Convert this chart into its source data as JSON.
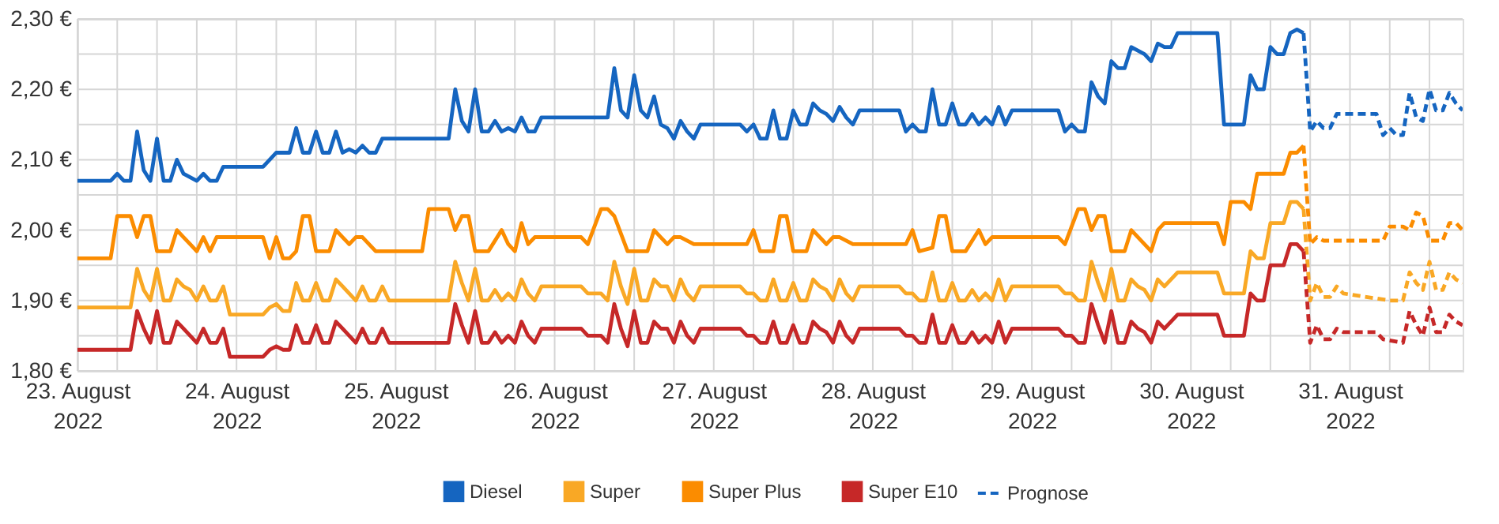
{
  "chart_data": {
    "type": "line",
    "xlim": [
      "2022-08-23T00:00",
      "2022-08-31T17:00"
    ],
    "ylim": [
      1.8,
      2.3
    ],
    "xticks": [
      {
        "value": "2022-08-23T00:00",
        "label": "23. August 2022"
      },
      {
        "value": "2022-08-23T06:00",
        "label": null
      },
      {
        "value": "2022-08-23T12:00",
        "label": null
      },
      {
        "value": "2022-08-23T18:00",
        "label": null
      },
      {
        "value": "2022-08-24T00:00",
        "label": "24. August 2022"
      },
      {
        "value": "2022-08-24T06:00",
        "label": null
      },
      {
        "value": "2022-08-24T12:00",
        "label": null
      },
      {
        "value": "2022-08-24T18:00",
        "label": null
      },
      {
        "value": "2022-08-25T00:00",
        "label": "25. August 2022"
      },
      {
        "value": "2022-08-25T06:00",
        "label": null
      },
      {
        "value": "2022-08-25T12:00",
        "label": null
      },
      {
        "value": "2022-08-25T18:00",
        "label": null
      },
      {
        "value": "2022-08-26T00:00",
        "label": "26. August 2022"
      },
      {
        "value": "2022-08-26T06:00",
        "label": null
      },
      {
        "value": "2022-08-26T12:00",
        "label": null
      },
      {
        "value": "2022-08-26T18:00",
        "label": null
      },
      {
        "value": "2022-08-27T00:00",
        "label": "27. August 2022"
      },
      {
        "value": "2022-08-27T06:00",
        "label": null
      },
      {
        "value": "2022-08-27T12:00",
        "label": null
      },
      {
        "value": "2022-08-27T18:00",
        "label": null
      },
      {
        "value": "2022-08-28T00:00",
        "label": "28. August 2022"
      },
      {
        "value": "2022-08-28T06:00",
        "label": null
      },
      {
        "value": "2022-08-28T12:00",
        "label": null
      },
      {
        "value": "2022-08-28T18:00",
        "label": null
      },
      {
        "value": "2022-08-29T00:00",
        "label": "29. August 2022"
      },
      {
        "value": "2022-08-29T06:00",
        "label": null
      },
      {
        "value": "2022-08-29T12:00",
        "label": null
      },
      {
        "value": "2022-08-29T18:00",
        "label": null
      },
      {
        "value": "2022-08-30T00:00",
        "label": "30. August 2022"
      },
      {
        "value": "2022-08-30T06:00",
        "label": null
      },
      {
        "value": "2022-08-30T12:00",
        "label": null
      },
      {
        "value": "2022-08-30T18:00",
        "label": null
      },
      {
        "value": "2022-08-31T00:00",
        "label": "31. August 2022"
      },
      {
        "value": "2022-08-31T06:00",
        "label": null
      },
      {
        "value": "2022-08-31T12:00",
        "label": null
      }
    ],
    "yticks": [
      {
        "value": 1.8,
        "label": "1,80 €"
      },
      {
        "value": 1.85,
        "label": null
      },
      {
        "value": 1.9,
        "label": "1,90 €"
      },
      {
        "value": 1.95,
        "label": null
      },
      {
        "value": 2.0,
        "label": "2,00 €"
      },
      {
        "value": 2.05,
        "label": null
      },
      {
        "value": 2.1,
        "label": "2,10 €"
      },
      {
        "value": 2.15,
        "label": null
      },
      {
        "value": 2.2,
        "label": "2,20 €"
      },
      {
        "value": 2.25,
        "label": null
      },
      {
        "value": 2.3,
        "label": "2,30 €"
      }
    ],
    "grid": true,
    "legend": "bottom",
    "marker": "none",
    "series": [
      {
        "name": "Diesel",
        "color": "#1565c0",
        "line_style": "solid",
        "x": [
          "2022-08-23T00:00",
          "2022-08-23T05:00",
          "2022-08-23T06:00",
          "2022-08-23T07:00",
          "2022-08-23T08:00",
          "2022-08-23T09:00",
          "2022-08-23T10:00",
          "2022-08-23T11:00",
          "2022-08-23T12:00",
          "2022-08-23T13:00",
          "2022-08-23T14:00",
          "2022-08-23T15:00",
          "2022-08-23T16:00",
          "2022-08-23T18:00",
          "2022-08-23T19:00",
          "2022-08-23T20:00",
          "2022-08-23T21:00",
          "2022-08-23T22:00",
          "2022-08-24T04:00",
          "2022-08-24T06:00",
          "2022-08-24T08:00",
          "2022-08-24T09:00",
          "2022-08-24T10:00",
          "2022-08-24T11:00",
          "2022-08-24T12:00",
          "2022-08-24T13:00",
          "2022-08-24T14:00",
          "2022-08-24T15:00",
          "2022-08-24T16:00",
          "2022-08-24T17:00",
          "2022-08-24T18:00",
          "2022-08-24T19:00",
          "2022-08-24T20:00",
          "2022-08-24T21:00",
          "2022-08-24T22:00",
          "2022-08-25T08:00",
          "2022-08-25T09:00",
          "2022-08-25T10:00",
          "2022-08-25T11:00",
          "2022-08-25T12:00",
          "2022-08-25T13:00",
          "2022-08-25T14:00",
          "2022-08-25T15:00",
          "2022-08-25T16:00",
          "2022-08-25T17:00",
          "2022-08-25T18:00",
          "2022-08-25T19:00",
          "2022-08-25T20:00",
          "2022-08-25T21:00",
          "2022-08-25T22:00",
          "2022-08-26T08:00",
          "2022-08-26T09:00",
          "2022-08-26T10:00",
          "2022-08-26T11:00",
          "2022-08-26T12:00",
          "2022-08-26T13:00",
          "2022-08-26T14:00",
          "2022-08-26T15:00",
          "2022-08-26T16:00",
          "2022-08-26T17:00",
          "2022-08-26T18:00",
          "2022-08-26T19:00",
          "2022-08-26T20:00",
          "2022-08-26T21:00",
          "2022-08-26T22:00",
          "2022-08-27T04:00",
          "2022-08-27T05:00",
          "2022-08-27T06:00",
          "2022-08-27T07:00",
          "2022-08-27T08:00",
          "2022-08-27T09:00",
          "2022-08-27T10:00",
          "2022-08-27T11:00",
          "2022-08-27T12:00",
          "2022-08-27T13:00",
          "2022-08-27T14:00",
          "2022-08-27T15:00",
          "2022-08-27T16:00",
          "2022-08-27T17:00",
          "2022-08-27T18:00",
          "2022-08-27T19:00",
          "2022-08-27T20:00",
          "2022-08-27T21:00",
          "2022-08-27T22:00",
          "2022-08-28T04:00",
          "2022-08-28T05:00",
          "2022-08-28T06:00",
          "2022-08-28T07:00",
          "2022-08-28T08:00",
          "2022-08-28T09:00",
          "2022-08-28T10:00",
          "2022-08-28T11:00",
          "2022-08-28T12:00",
          "2022-08-28T13:00",
          "2022-08-28T14:00",
          "2022-08-28T15:00",
          "2022-08-28T16:00",
          "2022-08-28T17:00",
          "2022-08-28T18:00",
          "2022-08-28T19:00",
          "2022-08-28T20:00",
          "2022-08-28T21:00",
          "2022-08-29T04:00",
          "2022-08-29T05:00",
          "2022-08-29T06:00",
          "2022-08-29T07:00",
          "2022-08-29T08:00",
          "2022-08-29T09:00",
          "2022-08-29T10:00",
          "2022-08-29T11:00",
          "2022-08-29T12:00",
          "2022-08-29T13:00",
          "2022-08-29T14:00",
          "2022-08-29T15:00",
          "2022-08-29T16:00",
          "2022-08-29T17:00",
          "2022-08-29T18:00",
          "2022-08-29T19:00",
          "2022-08-29T20:00",
          "2022-08-29T21:00",
          "2022-08-29T22:00",
          "2022-08-30T04:00",
          "2022-08-30T05:00",
          "2022-08-30T08:00",
          "2022-08-30T09:00",
          "2022-08-30T10:00",
          "2022-08-30T11:00",
          "2022-08-30T12:00",
          "2022-08-30T13:00",
          "2022-08-30T14:00",
          "2022-08-30T15:00",
          "2022-08-30T16:00",
          "2022-08-30T17:00"
        ],
        "values": [
          2.07,
          2.07,
          2.08,
          2.07,
          2.07,
          2.14,
          2.085,
          2.07,
          2.13,
          2.07,
          2.07,
          2.1,
          2.08,
          2.07,
          2.08,
          2.07,
          2.07,
          2.09,
          2.09,
          2.11,
          2.11,
          2.145,
          2.11,
          2.11,
          2.14,
          2.11,
          2.11,
          2.14,
          2.11,
          2.115,
          2.11,
          2.12,
          2.11,
          2.11,
          2.13,
          2.13,
          2.2,
          2.155,
          2.14,
          2.2,
          2.14,
          2.14,
          2.155,
          2.14,
          2.145,
          2.14,
          2.16,
          2.14,
          2.14,
          2.16,
          2.16,
          2.23,
          2.17,
          2.16,
          2.22,
          2.17,
          2.16,
          2.19,
          2.15,
          2.145,
          2.13,
          2.155,
          2.14,
          2.13,
          2.15,
          2.15,
          2.14,
          2.15,
          2.13,
          2.13,
          2.17,
          2.13,
          2.13,
          2.17,
          2.15,
          2.15,
          2.18,
          2.17,
          2.165,
          2.155,
          2.175,
          2.16,
          2.15,
          2.17,
          2.17,
          2.14,
          2.15,
          2.14,
          2.14,
          2.2,
          2.15,
          2.15,
          2.18,
          2.15,
          2.15,
          2.165,
          2.15,
          2.16,
          2.15,
          2.175,
          2.15,
          2.17,
          2.17,
          2.14,
          2.15,
          2.14,
          2.14,
          2.21,
          2.19,
          2.18,
          2.24,
          2.23,
          2.23,
          2.26,
          2.255,
          2.25,
          2.24,
          2.265,
          2.26,
          2.26,
          2.28,
          2.28,
          2.15,
          2.15,
          2.22,
          2.2,
          2.2,
          2.26,
          2.25,
          2.25,
          2.28,
          2.285,
          2.28
        ]
      },
      {
        "name": "Super",
        "color": "#f9a825",
        "line_style": "solid",
        "x": [
          "2022-08-23T00:00",
          "2022-08-23T08:00",
          "2022-08-23T09:00",
          "2022-08-23T10:00",
          "2022-08-23T11:00",
          "2022-08-23T12:00",
          "2022-08-23T13:00",
          "2022-08-23T14:00",
          "2022-08-23T15:00",
          "2022-08-23T16:00",
          "2022-08-23T17:00",
          "2022-08-23T18:00",
          "2022-08-23T19:00",
          "2022-08-23T20:00",
          "2022-08-23T21:00",
          "2022-08-23T22:00",
          "2022-08-23T23:00",
          "2022-08-24T04:00",
          "2022-08-24T05:00",
          "2022-08-24T06:00",
          "2022-08-24T07:00",
          "2022-08-24T08:00",
          "2022-08-24T09:00",
          "2022-08-24T10:00",
          "2022-08-24T11:00",
          "2022-08-24T12:00",
          "2022-08-24T13:00",
          "2022-08-24T14:00",
          "2022-08-24T15:00",
          "2022-08-24T16:00",
          "2022-08-24T17:00",
          "2022-08-24T18:00",
          "2022-08-24T19:00",
          "2022-08-24T20:00",
          "2022-08-24T21:00",
          "2022-08-24T22:00",
          "2022-08-24T23:00",
          "2022-08-25T08:00",
          "2022-08-25T09:00",
          "2022-08-25T10:00",
          "2022-08-25T11:00",
          "2022-08-25T12:00",
          "2022-08-25T13:00",
          "2022-08-25T14:00",
          "2022-08-25T15:00",
          "2022-08-25T16:00",
          "2022-08-25T17:00",
          "2022-08-25T18:00",
          "2022-08-25T19:00",
          "2022-08-25T20:00",
          "2022-08-25T21:00",
          "2022-08-25T22:00",
          "2022-08-26T04:00",
          "2022-08-26T05:00",
          "2022-08-26T07:00",
          "2022-08-26T08:00",
          "2022-08-26T09:00",
          "2022-08-26T10:00",
          "2022-08-26T11:00",
          "2022-08-26T12:00",
          "2022-08-26T13:00",
          "2022-08-26T14:00",
          "2022-08-26T15:00",
          "2022-08-26T16:00",
          "2022-08-26T17:00",
          "2022-08-26T18:00",
          "2022-08-26T19:00",
          "2022-08-26T20:00",
          "2022-08-26T21:00",
          "2022-08-26T22:00",
          "2022-08-27T04:00",
          "2022-08-27T05:00",
          "2022-08-27T06:00",
          "2022-08-27T07:00",
          "2022-08-27T08:00",
          "2022-08-27T09:00",
          "2022-08-27T10:00",
          "2022-08-27T11:00",
          "2022-08-27T12:00",
          "2022-08-27T13:00",
          "2022-08-27T14:00",
          "2022-08-27T15:00",
          "2022-08-27T16:00",
          "2022-08-27T17:00",
          "2022-08-27T18:00",
          "2022-08-27T19:00",
          "2022-08-27T20:00",
          "2022-08-27T21:00",
          "2022-08-27T22:00",
          "2022-08-28T04:00",
          "2022-08-28T05:00",
          "2022-08-28T06:00",
          "2022-08-28T07:00",
          "2022-08-28T08:00",
          "2022-08-28T09:00",
          "2022-08-28T10:00",
          "2022-08-28T11:00",
          "2022-08-28T12:00",
          "2022-08-28T13:00",
          "2022-08-28T14:00",
          "2022-08-28T15:00",
          "2022-08-28T16:00",
          "2022-08-28T17:00",
          "2022-08-28T18:00",
          "2022-08-28T19:00",
          "2022-08-28T20:00",
          "2022-08-28T21:00",
          "2022-08-29T04:00",
          "2022-08-29T05:00",
          "2022-08-29T06:00",
          "2022-08-29T07:00",
          "2022-08-29T08:00",
          "2022-08-29T09:00",
          "2022-08-29T10:00",
          "2022-08-29T11:00",
          "2022-08-29T12:00",
          "2022-08-29T13:00",
          "2022-08-29T14:00",
          "2022-08-29T15:00",
          "2022-08-29T16:00",
          "2022-08-29T17:00",
          "2022-08-29T18:00",
          "2022-08-29T19:00",
          "2022-08-29T20:00",
          "2022-08-29T22:00",
          "2022-08-30T04:00",
          "2022-08-30T05:00",
          "2022-08-30T08:00",
          "2022-08-30T09:00",
          "2022-08-30T10:00",
          "2022-08-30T11:00",
          "2022-08-30T12:00",
          "2022-08-30T14:00",
          "2022-08-30T15:00",
          "2022-08-30T16:00",
          "2022-08-30T17:00"
        ],
        "values": [
          1.89,
          1.89,
          1.945,
          1.915,
          1.9,
          1.945,
          1.9,
          1.9,
          1.93,
          1.92,
          1.915,
          1.9,
          1.92,
          1.9,
          1.9,
          1.92,
          1.88,
          1.88,
          1.89,
          1.895,
          1.885,
          1.885,
          1.925,
          1.9,
          1.9,
          1.925,
          1.9,
          1.9,
          1.93,
          1.92,
          1.91,
          1.9,
          1.92,
          1.9,
          1.9,
          1.92,
          1.9,
          1.9,
          1.955,
          1.925,
          1.9,
          1.945,
          1.9,
          1.9,
          1.915,
          1.9,
          1.91,
          1.9,
          1.93,
          1.91,
          1.9,
          1.92,
          1.92,
          1.91,
          1.91,
          1.9,
          1.955,
          1.92,
          1.895,
          1.945,
          1.9,
          1.9,
          1.93,
          1.92,
          1.92,
          1.9,
          1.93,
          1.91,
          1.9,
          1.92,
          1.92,
          1.91,
          1.91,
          1.9,
          1.9,
          1.93,
          1.9,
          1.9,
          1.925,
          1.9,
          1.9,
          1.93,
          1.92,
          1.915,
          1.9,
          1.93,
          1.91,
          1.9,
          1.92,
          1.92,
          1.91,
          1.91,
          1.9,
          1.9,
          1.94,
          1.9,
          1.9,
          1.925,
          1.9,
          1.9,
          1.915,
          1.9,
          1.91,
          1.9,
          1.93,
          1.9,
          1.92,
          1.92,
          1.91,
          1.91,
          1.9,
          1.9,
          1.955,
          1.925,
          1.9,
          1.945,
          1.9,
          1.9,
          1.93,
          1.92,
          1.915,
          1.9,
          1.93,
          1.92,
          1.94,
          1.94,
          1.91,
          1.91,
          1.97,
          1.96,
          1.96,
          2.01,
          2.01,
          2.04,
          2.04,
          2.03
        ]
      },
      {
        "name": "Super Plus",
        "color": "#fb8c00",
        "line_style": "solid",
        "x": [
          "2022-08-23T00:00",
          "2022-08-23T05:00",
          "2022-08-23T06:00",
          "2022-08-23T08:00",
          "2022-08-23T09:00",
          "2022-08-23T10:00",
          "2022-08-23T11:00",
          "2022-08-23T12:00",
          "2022-08-23T14:00",
          "2022-08-23T15:00",
          "2022-08-23T16:00",
          "2022-08-23T17:00",
          "2022-08-23T18:00",
          "2022-08-23T19:00",
          "2022-08-23T20:00",
          "2022-08-23T21:00",
          "2022-08-24T04:00",
          "2022-08-24T05:00",
          "2022-08-24T06:00",
          "2022-08-24T07:00",
          "2022-08-24T08:00",
          "2022-08-24T09:00",
          "2022-08-24T10:00",
          "2022-08-24T11:00",
          "2022-08-24T12:00",
          "2022-08-24T14:00",
          "2022-08-24T15:00",
          "2022-08-24T16:00",
          "2022-08-24T17:00",
          "2022-08-24T18:00",
          "2022-08-24T19:00",
          "2022-08-24T21:00",
          "2022-08-25T04:00",
          "2022-08-25T05:00",
          "2022-08-25T08:00",
          "2022-08-25T09:00",
          "2022-08-25T10:00",
          "2022-08-25T11:00",
          "2022-08-25T12:00",
          "2022-08-25T14:00",
          "2022-08-25T16:00",
          "2022-08-25T17:00",
          "2022-08-25T18:00",
          "2022-08-25T19:00",
          "2022-08-25T20:00",
          "2022-08-25T21:00",
          "2022-08-26T04:00",
          "2022-08-26T05:00",
          "2022-08-26T07:00",
          "2022-08-26T08:00",
          "2022-08-26T09:00",
          "2022-08-26T11:00",
          "2022-08-26T14:00",
          "2022-08-26T15:00",
          "2022-08-26T16:00",
          "2022-08-26T17:00",
          "2022-08-26T18:00",
          "2022-08-26T19:00",
          "2022-08-26T21:00",
          "2022-08-27T05:00",
          "2022-08-27T06:00",
          "2022-08-27T07:00",
          "2022-08-27T09:00",
          "2022-08-27T10:00",
          "2022-08-27T11:00",
          "2022-08-27T12:00",
          "2022-08-27T14:00",
          "2022-08-27T15:00",
          "2022-08-27T17:00",
          "2022-08-27T18:00",
          "2022-08-27T19:00",
          "2022-08-27T21:00",
          "2022-08-28T05:00",
          "2022-08-28T06:00",
          "2022-08-28T07:00",
          "2022-08-28T09:00",
          "2022-08-28T10:00",
          "2022-08-28T11:00",
          "2022-08-28T12:00",
          "2022-08-28T14:00",
          "2022-08-28T16:00",
          "2022-08-28T17:00",
          "2022-08-28T18:00",
          "2022-08-29T04:00",
          "2022-08-29T05:00",
          "2022-08-29T07:00",
          "2022-08-29T08:00",
          "2022-08-29T09:00",
          "2022-08-29T10:00",
          "2022-08-29T11:00",
          "2022-08-29T12:00",
          "2022-08-29T14:00",
          "2022-08-29T15:00",
          "2022-08-29T18:00",
          "2022-08-29T19:00",
          "2022-08-29T20:00",
          "2022-08-30T04:00",
          "2022-08-30T05:00",
          "2022-08-30T06:00",
          "2022-08-30T08:00",
          "2022-08-30T09:00",
          "2022-08-30T10:00",
          "2022-08-30T14:00",
          "2022-08-30T15:00",
          "2022-08-30T16:00",
          "2022-08-30T17:00"
        ],
        "values": [
          1.96,
          1.96,
          2.02,
          2.02,
          1.99,
          2.02,
          2.02,
          1.97,
          1.97,
          2.0,
          1.99,
          1.98,
          1.97,
          1.99,
          1.97,
          1.99,
          1.99,
          1.96,
          1.99,
          1.96,
          1.96,
          1.97,
          2.02,
          2.02,
          1.97,
          1.97,
          2.0,
          1.99,
          1.98,
          1.99,
          1.99,
          1.97,
          1.97,
          2.03,
          2.03,
          2.0,
          2.02,
          2.02,
          1.97,
          1.97,
          2.0,
          1.98,
          1.97,
          2.01,
          1.98,
          1.99,
          1.99,
          1.98,
          2.03,
          2.03,
          2.02,
          1.97,
          1.97,
          2.0,
          1.99,
          1.98,
          1.99,
          1.99,
          1.98,
          1.98,
          2.0,
          1.97,
          1.97,
          2.02,
          2.02,
          1.97,
          1.97,
          2.0,
          1.98,
          1.99,
          1.99,
          1.98,
          1.98,
          2.0,
          1.97,
          1.975,
          2.02,
          2.02,
          1.97,
          1.97,
          2.0,
          1.98,
          1.99,
          1.99,
          1.98,
          2.03,
          2.03,
          2.0,
          2.02,
          2.02,
          1.97,
          1.97,
          2.0,
          1.97,
          2.0,
          2.01,
          2.01,
          1.98,
          2.04,
          2.04,
          2.03,
          2.08,
          2.08,
          2.11,
          2.11,
          2.12
        ]
      },
      {
        "name": "Super E10",
        "color": "#c62828",
        "line_style": "solid",
        "x": [
          "2022-08-23T00:00",
          "2022-08-23T08:00",
          "2022-08-23T09:00",
          "2022-08-23T10:00",
          "2022-08-23T11:00",
          "2022-08-23T12:00",
          "2022-08-23T13:00",
          "2022-08-23T14:00",
          "2022-08-23T15:00",
          "2022-08-23T16:00",
          "2022-08-23T17:00",
          "2022-08-23T18:00",
          "2022-08-23T19:00",
          "2022-08-23T20:00",
          "2022-08-23T21:00",
          "2022-08-23T22:00",
          "2022-08-23T23:00",
          "2022-08-24T04:00",
          "2022-08-24T05:00",
          "2022-08-24T06:00",
          "2022-08-24T07:00",
          "2022-08-24T08:00",
          "2022-08-24T09:00",
          "2022-08-24T10:00",
          "2022-08-24T11:00",
          "2022-08-24T12:00",
          "2022-08-24T13:00",
          "2022-08-24T14:00",
          "2022-08-24T15:00",
          "2022-08-24T16:00",
          "2022-08-24T17:00",
          "2022-08-24T18:00",
          "2022-08-24T19:00",
          "2022-08-24T20:00",
          "2022-08-24T21:00",
          "2022-08-24T22:00",
          "2022-08-24T23:00",
          "2022-08-25T08:00",
          "2022-08-25T09:00",
          "2022-08-25T10:00",
          "2022-08-25T11:00",
          "2022-08-25T12:00",
          "2022-08-25T13:00",
          "2022-08-25T14:00",
          "2022-08-25T15:00",
          "2022-08-25T16:00",
          "2022-08-25T17:00",
          "2022-08-25T18:00",
          "2022-08-25T19:00",
          "2022-08-25T20:00",
          "2022-08-25T21:00",
          "2022-08-25T22:00",
          "2022-08-26T04:00",
          "2022-08-26T05:00",
          "2022-08-26T07:00",
          "2022-08-26T08:00",
          "2022-08-26T09:00",
          "2022-08-26T10:00",
          "2022-08-26T11:00",
          "2022-08-26T12:00",
          "2022-08-26T13:00",
          "2022-08-26T14:00",
          "2022-08-26T15:00",
          "2022-08-26T16:00",
          "2022-08-26T17:00",
          "2022-08-26T18:00",
          "2022-08-26T19:00",
          "2022-08-26T20:00",
          "2022-08-26T21:00",
          "2022-08-26T22:00",
          "2022-08-27T04:00",
          "2022-08-27T05:00",
          "2022-08-27T06:00",
          "2022-08-27T07:00",
          "2022-08-27T08:00",
          "2022-08-27T09:00",
          "2022-08-27T10:00",
          "2022-08-27T11:00",
          "2022-08-27T12:00",
          "2022-08-27T13:00",
          "2022-08-27T14:00",
          "2022-08-27T15:00",
          "2022-08-27T16:00",
          "2022-08-27T17:00",
          "2022-08-27T18:00",
          "2022-08-27T19:00",
          "2022-08-27T20:00",
          "2022-08-27T21:00",
          "2022-08-27T22:00",
          "2022-08-28T04:00",
          "2022-08-28T05:00",
          "2022-08-28T06:00",
          "2022-08-28T07:00",
          "2022-08-28T08:00",
          "2022-08-28T09:00",
          "2022-08-28T10:00",
          "2022-08-28T11:00",
          "2022-08-28T12:00",
          "2022-08-28T13:00",
          "2022-08-28T14:00",
          "2022-08-28T15:00",
          "2022-08-28T16:00",
          "2022-08-28T17:00",
          "2022-08-28T18:00",
          "2022-08-28T19:00",
          "2022-08-28T20:00",
          "2022-08-28T21:00",
          "2022-08-29T04:00",
          "2022-08-29T05:00",
          "2022-08-29T06:00",
          "2022-08-29T07:00",
          "2022-08-29T08:00",
          "2022-08-29T09:00",
          "2022-08-29T10:00",
          "2022-08-29T11:00",
          "2022-08-29T12:00",
          "2022-08-29T13:00",
          "2022-08-29T14:00",
          "2022-08-29T15:00",
          "2022-08-29T16:00",
          "2022-08-29T17:00",
          "2022-08-29T18:00",
          "2022-08-29T19:00",
          "2022-08-29T20:00",
          "2022-08-29T22:00",
          "2022-08-30T04:00",
          "2022-08-30T05:00",
          "2022-08-30T08:00",
          "2022-08-30T09:00",
          "2022-08-30T10:00",
          "2022-08-30T11:00",
          "2022-08-30T12:00",
          "2022-08-30T14:00",
          "2022-08-30T15:00",
          "2022-08-30T16:00",
          "2022-08-30T17:00"
        ],
        "values": [
          1.83,
          1.83,
          1.885,
          1.86,
          1.84,
          1.885,
          1.84,
          1.84,
          1.87,
          1.86,
          1.85,
          1.84,
          1.86,
          1.84,
          1.84,
          1.86,
          1.82,
          1.82,
          1.83,
          1.835,
          1.83,
          1.83,
          1.865,
          1.84,
          1.84,
          1.865,
          1.84,
          1.84,
          1.87,
          1.86,
          1.85,
          1.84,
          1.86,
          1.84,
          1.84,
          1.86,
          1.84,
          1.84,
          1.895,
          1.865,
          1.84,
          1.885,
          1.84,
          1.84,
          1.855,
          1.84,
          1.85,
          1.84,
          1.87,
          1.85,
          1.84,
          1.86,
          1.86,
          1.85,
          1.85,
          1.84,
          1.895,
          1.86,
          1.835,
          1.885,
          1.84,
          1.84,
          1.87,
          1.86,
          1.86,
          1.84,
          1.87,
          1.85,
          1.84,
          1.86,
          1.86,
          1.85,
          1.85,
          1.84,
          1.84,
          1.87,
          1.84,
          1.84,
          1.865,
          1.84,
          1.84,
          1.87,
          1.86,
          1.855,
          1.84,
          1.87,
          1.85,
          1.84,
          1.86,
          1.86,
          1.85,
          1.85,
          1.84,
          1.84,
          1.88,
          1.84,
          1.84,
          1.865,
          1.84,
          1.84,
          1.855,
          1.84,
          1.85,
          1.84,
          1.87,
          1.84,
          1.86,
          1.86,
          1.85,
          1.85,
          1.84,
          1.84,
          1.895,
          1.865,
          1.84,
          1.885,
          1.84,
          1.84,
          1.87,
          1.86,
          1.855,
          1.84,
          1.87,
          1.86,
          1.88,
          1.88,
          1.85,
          1.85,
          1.91,
          1.9,
          1.9,
          1.95,
          1.95,
          1.98,
          1.98,
          1.97
        ]
      },
      {
        "name": "Prognose",
        "color": "#1565c0",
        "line_style": "dashed",
        "x": [
          "2022-08-30T17:00",
          "2022-08-30T18:00",
          "2022-08-30T19:00",
          "2022-08-30T20:00",
          "2022-08-30T21:00",
          "2022-08-30T22:00",
          "2022-08-31T04:00",
          "2022-08-31T05:00",
          "2022-08-31T06:00",
          "2022-08-31T07:00",
          "2022-08-31T08:00",
          "2022-08-31T09:00",
          "2022-08-31T10:00",
          "2022-08-31T11:00",
          "2022-08-31T12:00",
          "2022-08-31T13:00",
          "2022-08-31T14:00",
          "2022-08-31T15:00",
          "2022-08-31T16:00",
          "2022-08-31T17:00"
        ],
        "values": [
          2.28,
          2.14,
          2.155,
          2.145,
          2.145,
          2.165,
          2.165,
          2.135,
          2.145,
          2.135,
          2.135,
          2.195,
          2.16,
          2.155,
          2.2,
          2.17,
          2.17,
          2.195,
          2.18,
          2.17
        ]
      },
      {
        "color": "#f9a825",
        "line_style": "dashed",
        "x": [
          "2022-08-30T17:00",
          "2022-08-30T18:00",
          "2022-08-30T19:00",
          "2022-08-30T20:00",
          "2022-08-30T21:00",
          "2022-08-30T22:00",
          "2022-08-30T23:00",
          "2022-08-31T06:00",
          "2022-08-31T08:00",
          "2022-08-31T09:00",
          "2022-08-31T10:00",
          "2022-08-31T11:00",
          "2022-08-31T12:00",
          "2022-08-31T13:00",
          "2022-08-31T14:00",
          "2022-08-31T15:00",
          "2022-08-31T16:00",
          "2022-08-31T17:00"
        ],
        "values": [
          2.03,
          1.9,
          1.925,
          1.905,
          1.905,
          1.92,
          1.91,
          1.9,
          1.9,
          1.94,
          1.925,
          1.915,
          1.955,
          1.915,
          1.915,
          1.94,
          1.93,
          1.925
        ]
      },
      {
        "color": "#fb8c00",
        "line_style": "dashed",
        "x": [
          "2022-08-30T17:00",
          "2022-08-30T18:00",
          "2022-08-30T19:00",
          "2022-08-30T20:00",
          "2022-08-31T05:00",
          "2022-08-31T06:00",
          "2022-08-31T08:00",
          "2022-08-31T09:00",
          "2022-08-31T10:00",
          "2022-08-31T11:00",
          "2022-08-31T12:00",
          "2022-08-31T14:00",
          "2022-08-31T15:00",
          "2022-08-31T16:00",
          "2022-08-31T17:00"
        ],
        "values": [
          2.12,
          1.98,
          1.99,
          1.985,
          1.985,
          2.005,
          2.005,
          2.0,
          2.025,
          2.02,
          1.985,
          1.985,
          2.01,
          2.01,
          2.0
        ]
      },
      {
        "color": "#c62828",
        "line_style": "dashed",
        "x": [
          "2022-08-30T17:00",
          "2022-08-30T18:00",
          "2022-08-30T19:00",
          "2022-08-30T20:00",
          "2022-08-30T21:00",
          "2022-08-30T22:00",
          "2022-08-30T23:00",
          "2022-08-31T04:00",
          "2022-08-31T05:00",
          "2022-08-31T08:00",
          "2022-08-31T09:00",
          "2022-08-31T10:00",
          "2022-08-31T11:00",
          "2022-08-31T12:00",
          "2022-08-31T13:00",
          "2022-08-31T14:00",
          "2022-08-31T15:00",
          "2022-08-31T16:00",
          "2022-08-31T17:00"
        ],
        "values": [
          1.97,
          1.84,
          1.865,
          1.845,
          1.845,
          1.86,
          1.855,
          1.855,
          1.845,
          1.84,
          1.885,
          1.865,
          1.85,
          1.89,
          1.855,
          1.855,
          1.88,
          1.87,
          1.865
        ]
      }
    ]
  }
}
